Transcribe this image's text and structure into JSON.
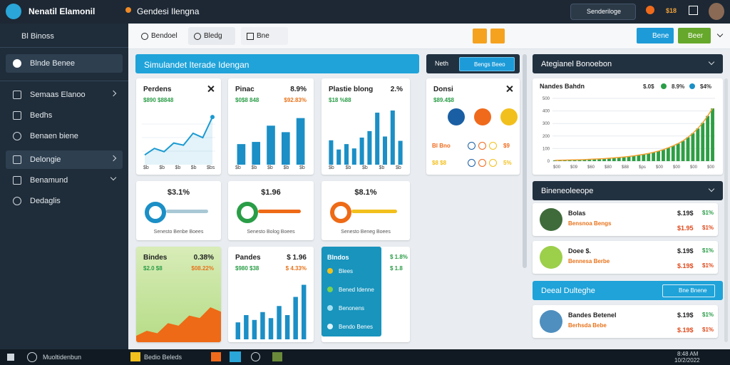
{
  "app": {
    "title": "Nenatil Elamonil",
    "subtitle": "Gendesi Ilengna",
    "search": "Senderiloge",
    "badge": "$18"
  },
  "sidebar": {
    "heading": "Bl Binoss",
    "active": "Blnde Benee",
    "items": [
      "Semaas Elanoo",
      "Bedhs",
      "Benaen biene",
      "Delongie",
      "Benamund",
      "Dedaglis"
    ]
  },
  "toolbar": {
    "tabs": [
      "Bendoel",
      "Bledg",
      "Bne"
    ],
    "buttons": [
      "Bene",
      "Beer"
    ]
  },
  "banner": "Simulandet Iterade Idengan",
  "filter": {
    "label": "Neth",
    "button": "Bengs Beeo"
  },
  "cards": [
    {
      "type": "line",
      "title": "Perdens",
      "sub": "$890 $8848",
      "values": [
        18,
        30,
        24,
        40,
        36,
        58,
        50,
        88
      ],
      "ylim": [
        0,
        100
      ],
      "x_labels": [
        "$b",
        "$b",
        "$b",
        "$b",
        "$bs"
      ],
      "color": "#1b9ad1"
    },
    {
      "type": "bar",
      "title": "Pinac",
      "value": "8.9%",
      "sub": "$0$8 848",
      "sub2": "$92.83%",
      "values": [
        38,
        42,
        72,
        60,
        86
      ],
      "ylim": [
        0,
        100
      ],
      "x_labels": [
        "$b",
        "$b",
        "$b",
        "$b",
        "$b"
      ],
      "color": "#1b8fc6"
    },
    {
      "type": "bar",
      "title": "Plastie blong",
      "value": "2.%",
      "sub": "$18 %88",
      "values": [
        45,
        28,
        38,
        30,
        50,
        62,
        96,
        52,
        100,
        44
      ],
      "ylim": [
        0,
        100
      ],
      "x_labels": [
        "$b",
        "$b",
        "$b",
        "$b",
        "$b"
      ],
      "color": "#1b8fc6"
    },
    {
      "type": "area",
      "title": "Bindes",
      "value": "0.38%",
      "sub": "$2.0 $8",
      "sub2": "$08.22%",
      "values": [
        10,
        18,
        14,
        30,
        26,
        42,
        38,
        55,
        48
      ],
      "ylim": [
        0,
        100
      ],
      "color": "#ee6a16",
      "bg": "#b5dc86"
    },
    {
      "type": "bar",
      "title": "Pandes",
      "value": "$ 1.96",
      "sub": "$980 $38",
      "sub2": "$ 4.33%",
      "values": [
        28,
        40,
        32,
        45,
        35,
        55,
        40,
        70,
        90
      ],
      "ylim": [
        0,
        100
      ],
      "color": "#1b8fc6"
    }
  ],
  "donut": {
    "title": "Donsi",
    "sub": "$89.4$8",
    "colors": [
      "#1a5fa3",
      "#f06a1c",
      "#f2c01d"
    ],
    "rows": [
      {
        "label": "Bl  Bno",
        "pct": "$9"
      },
      {
        "label": "$8 $8",
        "pct": "5%"
      }
    ]
  },
  "gauges": [
    {
      "value": "$3.1%",
      "caption": "Senesto Benbe Boees",
      "colors": [
        "#1b8fc6",
        "#a9c8d6"
      ]
    },
    {
      "value": "$1.96",
      "caption": "Senesto Bolog Boees",
      "colors": [
        "#2a9d47",
        "#ee6a16"
      ]
    },
    {
      "value": "$8.1%",
      "caption": "Senesto Beneg Boees",
      "colors": [
        "#ee6a16",
        "#f2c01d"
      ]
    }
  ],
  "menu_card": {
    "title": "Blndos",
    "items": [
      "Blees",
      "Bened Idenne",
      "Benonens",
      "Bendo Benes"
    ],
    "side": [
      "$ 1.8%",
      "$ 1.8"
    ]
  },
  "trend": {
    "header": "Ategianel Bonoebon",
    "title": "Nandes Bahdn",
    "legend": [
      "$.0$",
      "8.9%",
      "$4%"
    ],
    "legend_colors": [
      "#2a9d47",
      "#1b8fc6",
      "#ee6a16"
    ],
    "values": [
      6,
      7,
      8,
      9,
      10,
      11,
      12,
      14,
      16,
      18,
      20,
      23,
      26,
      29,
      33,
      37,
      42,
      48,
      54,
      61,
      70,
      80,
      92,
      106,
      122,
      140,
      162,
      190,
      222,
      260,
      305,
      360,
      420
    ],
    "ylim": [
      0,
      500
    ],
    "yticks": [
      0,
      100,
      200,
      300,
      400,
      500
    ],
    "x_labels": [
      "$00",
      "$09",
      "$60",
      "$80",
      "$88",
      "$ps",
      "$00",
      "$00",
      "$00",
      "$00"
    ],
    "bar_color": "#2e9e44",
    "line_color": "#f0a030"
  },
  "pills": {
    "title": "Bineneoleeope",
    "items": [
      {
        "name": "Bolas",
        "sub": "Bensnoa Bengs",
        "v1": "$.19$",
        "p1": "$1%",
        "v2": "$1.95",
        "p2": "$1%"
      },
      {
        "name": "Doee $.",
        "sub": "Bennesa Berbe",
        "v1": "$.19$",
        "p1": "$1%",
        "v2": "$.19$",
        "p2": "$1%"
      }
    ]
  },
  "deals": {
    "title": "Deeal Dulteghe",
    "button": "Bne Bnene",
    "items": [
      {
        "name": "Bandes Betenel",
        "sub": "Berhsda Bebe",
        "v1": "$.19$",
        "p1": "$1%",
        "v2": "$.19$",
        "p2": "$1%"
      }
    ]
  },
  "taskbar": {
    "search": "Muoltidenbun",
    "app": "Bedio Beleds",
    "time": "8:48 AM",
    "date": "10/2/2022"
  }
}
